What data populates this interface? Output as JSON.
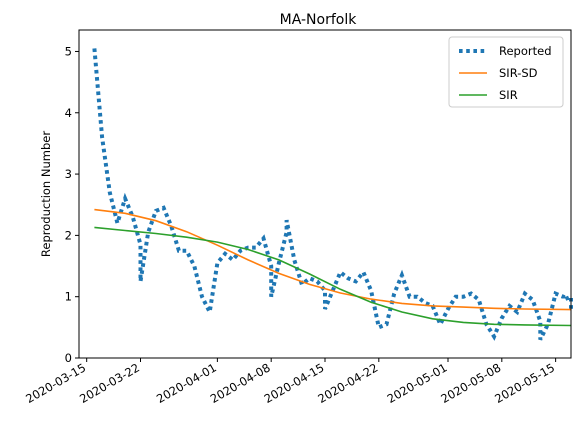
{
  "chart_data": {
    "type": "line",
    "title": "MA-Norfolk",
    "xlabel": "",
    "ylabel": "Reproduction Number",
    "x_ticks": [
      "2020-03-15",
      "2020-03-22",
      "2020-04-01",
      "2020-04-08",
      "2020-04-15",
      "2020-04-22",
      "2020-05-01",
      "2020-05-08",
      "2020-05-15"
    ],
    "y_ticks": [
      "0",
      "1",
      "2",
      "3",
      "4",
      "5"
    ],
    "xlim": [
      "2020-03-14",
      "2020-05-17"
    ],
    "ylim": [
      0,
      5.35
    ],
    "grid": false,
    "legend_position": "top-right",
    "series": [
      {
        "name": "Reported",
        "style": "dotted",
        "color": "#1f77b4",
        "points": [
          [
            "2020-03-16",
            5.05
          ],
          [
            "2020-03-17",
            3.6
          ],
          [
            "2020-03-18",
            2.7
          ],
          [
            "2020-03-19",
            2.2
          ],
          [
            "2020-03-20",
            2.6
          ],
          [
            "2020-03-21",
            2.3
          ],
          [
            "2020-03-22",
            1.85
          ],
          [
            "2020-03-22",
            1.25
          ],
          [
            "2020-03-23",
            2.05
          ],
          [
            "2020-03-24",
            2.4
          ],
          [
            "2020-03-25",
            2.45
          ],
          [
            "2020-03-26",
            2.15
          ],
          [
            "2020-03-27",
            1.75
          ],
          [
            "2020-03-28",
            1.75
          ],
          [
            "2020-03-29",
            1.5
          ],
          [
            "2020-03-30",
            1.0
          ],
          [
            "2020-03-31",
            0.75
          ],
          [
            "2020-04-01",
            1.55
          ],
          [
            "2020-04-02",
            1.7
          ],
          [
            "2020-04-03",
            1.6
          ],
          [
            "2020-04-04",
            1.75
          ],
          [
            "2020-04-05",
            1.8
          ],
          [
            "2020-04-06",
            1.8
          ],
          [
            "2020-04-07",
            1.95
          ],
          [
            "2020-04-08",
            1.5
          ],
          [
            "2020-04-08",
            1.0
          ],
          [
            "2020-04-09",
            1.55
          ],
          [
            "2020-04-10",
            2.05
          ],
          [
            "2020-04-10",
            2.25
          ],
          [
            "2020-04-11",
            1.6
          ],
          [
            "2020-04-12",
            1.2
          ],
          [
            "2020-04-13",
            1.3
          ],
          [
            "2020-04-14",
            1.25
          ],
          [
            "2020-04-15",
            1.1
          ],
          [
            "2020-04-15",
            0.8
          ],
          [
            "2020-04-16",
            1.1
          ],
          [
            "2020-04-17",
            1.4
          ],
          [
            "2020-04-18",
            1.3
          ],
          [
            "2020-04-19",
            1.25
          ],
          [
            "2020-04-20",
            1.4
          ],
          [
            "2020-04-21",
            1.1
          ],
          [
            "2020-04-22",
            0.5
          ],
          [
            "2020-04-23",
            0.55
          ],
          [
            "2020-04-24",
            1.05
          ],
          [
            "2020-04-25",
            1.35
          ],
          [
            "2020-04-26",
            1.0
          ],
          [
            "2020-04-27",
            1.0
          ],
          [
            "2020-04-28",
            0.9
          ],
          [
            "2020-04-29",
            0.85
          ],
          [
            "2020-04-30",
            0.55
          ],
          [
            "2020-05-01",
            0.8
          ],
          [
            "2020-05-02",
            1.0
          ],
          [
            "2020-05-03",
            1.0
          ],
          [
            "2020-05-04",
            1.05
          ],
          [
            "2020-05-05",
            0.95
          ],
          [
            "2020-05-06",
            0.55
          ],
          [
            "2020-05-07",
            0.35
          ],
          [
            "2020-05-08",
            0.65
          ],
          [
            "2020-05-09",
            0.85
          ],
          [
            "2020-05-10",
            0.75
          ],
          [
            "2020-05-11",
            1.05
          ],
          [
            "2020-05-12",
            0.95
          ],
          [
            "2020-05-13",
            0.6
          ],
          [
            "2020-05-13",
            0.3
          ],
          [
            "2020-05-14",
            0.55
          ],
          [
            "2020-05-15",
            1.05
          ],
          [
            "2020-05-16",
            1.0
          ],
          [
            "2020-05-16",
            0.95
          ],
          [
            "2020-05-17",
            1.0
          ],
          [
            "2020-05-17",
            0.8
          ]
        ]
      },
      {
        "name": "SIR-SD",
        "style": "solid",
        "color": "#ff7f0e",
        "points": [
          [
            "2020-03-16",
            2.42
          ],
          [
            "2020-03-20",
            2.36
          ],
          [
            "2020-03-24",
            2.24
          ],
          [
            "2020-03-28",
            2.06
          ],
          [
            "2020-04-01",
            1.84
          ],
          [
            "2020-04-05",
            1.6
          ],
          [
            "2020-04-09",
            1.38
          ],
          [
            "2020-04-13",
            1.2
          ],
          [
            "2020-04-17",
            1.06
          ],
          [
            "2020-04-21",
            0.96
          ],
          [
            "2020-04-25",
            0.89
          ],
          [
            "2020-04-29",
            0.85
          ],
          [
            "2020-05-03",
            0.83
          ],
          [
            "2020-05-07",
            0.81
          ],
          [
            "2020-05-11",
            0.8
          ],
          [
            "2020-05-17",
            0.79
          ]
        ]
      },
      {
        "name": "SIR",
        "style": "solid",
        "color": "#2ca02c",
        "points": [
          [
            "2020-03-16",
            2.13
          ],
          [
            "2020-03-20",
            2.08
          ],
          [
            "2020-03-24",
            2.03
          ],
          [
            "2020-03-28",
            1.97
          ],
          [
            "2020-04-01",
            1.89
          ],
          [
            "2020-04-05",
            1.77
          ],
          [
            "2020-04-09",
            1.6
          ],
          [
            "2020-04-13",
            1.37
          ],
          [
            "2020-04-17",
            1.12
          ],
          [
            "2020-04-21",
            0.91
          ],
          [
            "2020-04-25",
            0.75
          ],
          [
            "2020-04-29",
            0.64
          ],
          [
            "2020-05-03",
            0.58
          ],
          [
            "2020-05-07",
            0.55
          ],
          [
            "2020-05-11",
            0.54
          ],
          [
            "2020-05-17",
            0.53
          ]
        ]
      }
    ]
  }
}
